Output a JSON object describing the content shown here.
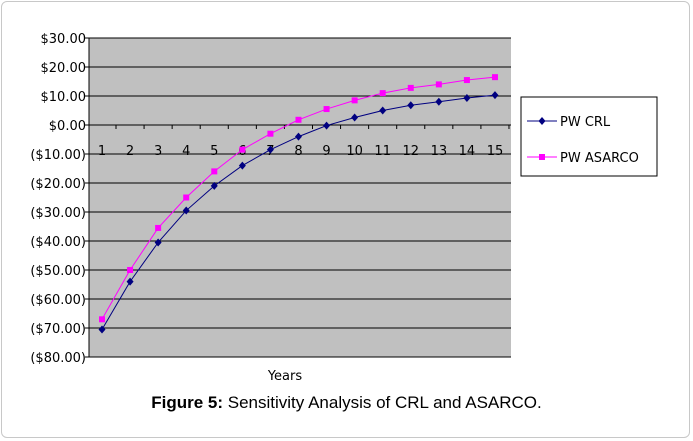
{
  "caption": {
    "label": "Figure 5:",
    "text": " Sensitivity Analysis of CRL and ASARCO."
  },
  "chart_data": {
    "type": "line",
    "xlabel": "Years",
    "ylabel": "",
    "categories": [
      "1",
      "2",
      "3",
      "4",
      "5",
      "6",
      "7",
      "8",
      "9",
      "10",
      "11",
      "12",
      "13",
      "14",
      "15"
    ],
    "y_ticks": [
      "$30.00",
      "$20.00",
      "$10.00",
      "$0.00",
      "($10.00)",
      "($20.00)",
      "($30.00)",
      "($40.00)",
      "($50.00)",
      "($60.00)",
      "($70.00)",
      "($80.00)"
    ],
    "ylim": [
      -80,
      30
    ],
    "grid": true,
    "legend_position": "right",
    "plot_background": "#c0c0c0",
    "series": [
      {
        "name": "PW CRL",
        "color": "#000080",
        "marker": "diamond",
        "values": [
          -70.5,
          -54,
          -40.5,
          -29.5,
          -21,
          -14,
          -8.5,
          -4,
          -0.2,
          2.6,
          5,
          6.8,
          8,
          9.3,
          10.3
        ]
      },
      {
        "name": "PW ASARCO",
        "color": "#ff00ff",
        "marker": "square",
        "values": [
          -67,
          -50,
          -35.5,
          -25,
          -16,
          -8.5,
          -3,
          1.8,
          5.5,
          8.5,
          11,
          12.8,
          14,
          15.5,
          16.5
        ]
      }
    ]
  }
}
